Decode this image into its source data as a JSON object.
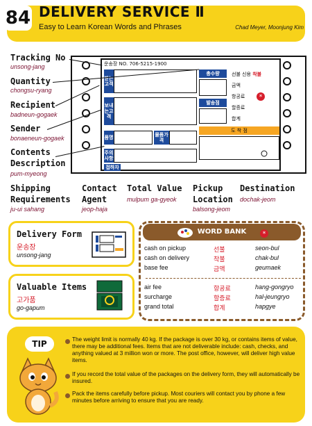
{
  "header": {
    "number": "84",
    "title": "DELIVERY SERVICE Ⅱ",
    "subtitle": "Easy to Learn Korean Words and Phrases",
    "authors": "Chad Meyer,  Moonjung Kim"
  },
  "form": {
    "top_line": "운송장 NO.  706-5215-1900",
    "recipient_cell": "받는고객",
    "sender_cell": "보내는고객",
    "item_cell": "품명",
    "value_cell": "물품가격",
    "notes_cell": "주의사항",
    "agent_cell": "접하자",
    "qty_cell": "총수량",
    "pickup_cell": "발송점",
    "dest_bar": "도 착 점",
    "fee_type": "선불 신용",
    "fee_type_red": "착불",
    "fee_1": "금액",
    "fee_2": "항공료",
    "fee_3": "할증료",
    "fee_4": "합계"
  },
  "terms_left": [
    {
      "en": "Tracking No",
      "rom": "unsong-jang"
    },
    {
      "en": "Quantity",
      "rom": "chongsu-ryang"
    },
    {
      "en": "Recipient",
      "rom": "badneun-gogaek"
    },
    {
      "en": "Sender",
      "rom": "bonaeneun-gogaek"
    },
    {
      "en": "Contents",
      "rom": ""
    },
    {
      "en": "Description",
      "rom": "pum-myeong"
    }
  ],
  "terms_bottom": [
    {
      "en": "Shipping",
      "en2": "Requirements",
      "rom": "ju-ui sahang"
    },
    {
      "en": "Contact",
      "en2": "Agent",
      "rom": "jeop-haja"
    },
    {
      "en": "Total Value",
      "en2": "",
      "rom": "mulpum ga-gyeok"
    },
    {
      "en": "Pickup",
      "en2": "Location",
      "rom": "balsong-jeom"
    },
    {
      "en": "Destination",
      "en2": "",
      "rom": "dochak-jeom"
    }
  ],
  "boxes": {
    "delivery_form": {
      "title": "Delivery Form",
      "ko": "운송장",
      "rom": "unsong-jang"
    },
    "valuable_items": {
      "title": "Valuable Items",
      "ko": "고가품",
      "rom": "go-gapum"
    }
  },
  "wordbank": {
    "title": "WORD BANK",
    "rows": [
      {
        "en": "cash on pickup",
        "ko": "선불",
        "rom": "seon-bul"
      },
      {
        "en": "cash on delivery",
        "ko": "착불",
        "rom": "chak-bul"
      },
      {
        "en": "base fee",
        "ko": "금액",
        "rom": "geumaek"
      },
      {
        "en": "air fee",
        "ko": "항공료",
        "rom": "hang-gongryo"
      },
      {
        "en": "surcharge",
        "ko": "할증료",
        "rom": "hal-jeungryo"
      },
      {
        "en": "grand total",
        "ko": "합계",
        "rom": "hapgye"
      }
    ]
  },
  "tip": {
    "label": "TIP",
    "p1": "The weight limit is normally 40 kg. If the package is over 30 kg, or contains items of value, there may be additional fees. Items that are not deliverable include: cash, checks, and anything valued at 3 million won or more. The post office, however, will deliver high value items.",
    "p2": "If you record the total value of the packages on the delivery form, they will automatically be insured.",
    "p3": "Pack the items carefully before pickup. Most couriers will contact you by phone a few minutes before arriving to ensure that you are ready."
  }
}
